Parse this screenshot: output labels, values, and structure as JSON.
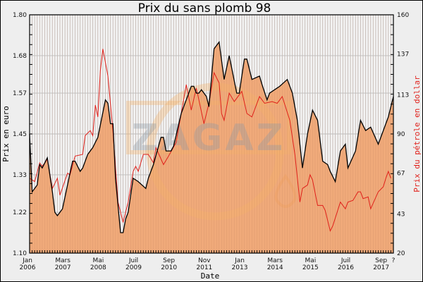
{
  "chart_data": {
    "type": "area",
    "title": "Prix du sans plomb 98",
    "xlabel": "Date",
    "ylabel": "Prix en euro",
    "y2label": "Prix du pétrole en dollar",
    "xlim": [
      "2006-01",
      "2018-01"
    ],
    "ylim": [
      1.1,
      1.8
    ],
    "y2lim": [
      20,
      160
    ],
    "yticks": [
      "1.10",
      "1.22",
      "1.33",
      "1.45",
      "1.57",
      "1.68",
      "1.80"
    ],
    "y2ticks": [
      "20",
      "43",
      "67",
      "90",
      "113",
      "137",
      "160"
    ],
    "xticks": [
      {
        "date": "2006-01",
        "month": "Jan",
        "year": "2006"
      },
      {
        "date": "2007-03",
        "month": "Mars",
        "year": "2007"
      },
      {
        "date": "2008-05",
        "month": "Mai",
        "year": "2008"
      },
      {
        "date": "2009-07",
        "month": "Juil",
        "year": "2009"
      },
      {
        "date": "2010-09",
        "month": "Sep",
        "year": "2010"
      },
      {
        "date": "2011-11",
        "month": "Nov",
        "year": "2011"
      },
      {
        "date": "2013-01",
        "month": "Jan",
        "year": "2013"
      },
      {
        "date": "2014-03",
        "month": "Mars",
        "year": "2014"
      },
      {
        "date": "2015-05",
        "month": "Mai",
        "year": "2015"
      },
      {
        "date": "2016-07",
        "month": "Juil",
        "year": "2016"
      },
      {
        "date": "2017-09",
        "month": "Sep",
        "year": "2017"
      }
    ],
    "xtick_end_label": "?",
    "grid": true,
    "watermark": "ZAGAZ",
    "colors": {
      "fill": "#f0aa7a",
      "euro_line": "#000000",
      "oil_line": "#e0201a",
      "plot_bg": "#f4f4f4",
      "grid": "#cccccc"
    },
    "series": [
      {
        "axis": "left",
        "kind": "area",
        "points": [
          [
            "2006-01",
            1.45
          ],
          [
            "2006-02",
            1.28
          ],
          [
            "2006-04",
            1.3
          ],
          [
            "2006-05",
            1.36
          ],
          [
            "2006-06",
            1.35
          ],
          [
            "2006-08",
            1.38
          ],
          [
            "2006-10",
            1.28
          ],
          [
            "2006-11",
            1.22
          ],
          [
            "2006-12",
            1.21
          ],
          [
            "2007-01",
            1.22
          ],
          [
            "2007-02",
            1.23
          ],
          [
            "2007-06",
            1.37
          ],
          [
            "2007-07",
            1.37
          ],
          [
            "2007-09",
            1.34
          ],
          [
            "2007-10",
            1.35
          ],
          [
            "2007-12",
            1.39
          ],
          [
            "2008-02",
            1.41
          ],
          [
            "2008-04",
            1.44
          ],
          [
            "2008-07",
            1.55
          ],
          [
            "2008-08",
            1.54
          ],
          [
            "2008-09",
            1.48
          ],
          [
            "2008-10",
            1.48
          ],
          [
            "2008-11",
            1.32
          ],
          [
            "2009-01",
            1.16
          ],
          [
            "2009-02",
            1.16
          ],
          [
            "2009-03",
            1.2
          ],
          [
            "2009-04",
            1.22
          ],
          [
            "2009-06",
            1.32
          ],
          [
            "2009-08",
            1.31
          ],
          [
            "2009-11",
            1.29
          ],
          [
            "2009-12",
            1.32
          ],
          [
            "2010-02",
            1.36
          ],
          [
            "2010-05",
            1.44
          ],
          [
            "2010-06",
            1.44
          ],
          [
            "2010-07",
            1.4
          ],
          [
            "2010-09",
            1.4
          ],
          [
            "2010-10",
            1.415
          ],
          [
            "2011-01",
            1.51
          ],
          [
            "2011-05",
            1.59
          ],
          [
            "2011-06",
            1.59
          ],
          [
            "2011-07",
            1.57
          ],
          [
            "2011-08",
            1.57
          ],
          [
            "2011-09",
            1.58
          ],
          [
            "2011-11",
            1.56
          ],
          [
            "2011-12",
            1.53
          ],
          [
            "2012-02",
            1.7
          ],
          [
            "2012-04",
            1.72
          ],
          [
            "2012-06",
            1.61
          ],
          [
            "2012-08",
            1.68
          ],
          [
            "2012-11",
            1.57
          ],
          [
            "2012-12",
            1.57
          ],
          [
            "2013-02",
            1.67
          ],
          [
            "2013-03",
            1.67
          ],
          [
            "2013-05",
            1.61
          ],
          [
            "2013-08",
            1.62
          ],
          [
            "2013-09",
            1.595
          ],
          [
            "2013-11",
            1.55
          ],
          [
            "2013-12",
            1.57
          ],
          [
            "2014-02",
            1.58
          ],
          [
            "2014-04",
            1.59
          ],
          [
            "2014-07",
            1.61
          ],
          [
            "2014-09",
            1.57
          ],
          [
            "2014-11",
            1.49
          ],
          [
            "2015-01",
            1.35
          ],
          [
            "2015-03",
            1.45
          ],
          [
            "2015-05",
            1.52
          ],
          [
            "2015-07",
            1.49
          ],
          [
            "2015-09",
            1.37
          ],
          [
            "2015-11",
            1.36
          ],
          [
            "2015-12",
            1.34
          ],
          [
            "2016-02",
            1.31
          ],
          [
            "2016-04",
            1.4
          ],
          [
            "2016-06",
            1.42
          ],
          [
            "2016-07",
            1.35
          ],
          [
            "2016-10",
            1.4
          ],
          [
            "2016-12",
            1.49
          ],
          [
            "2017-02",
            1.46
          ],
          [
            "2017-04",
            1.47
          ],
          [
            "2017-07",
            1.42
          ],
          [
            "2017-09",
            1.46
          ],
          [
            "2017-11",
            1.5
          ],
          [
            "2018-01",
            1.56
          ]
        ]
      },
      {
        "axis": "right",
        "kind": "line",
        "points": [
          [
            "2006-01",
            64
          ],
          [
            "2006-03",
            62
          ],
          [
            "2006-05",
            73
          ],
          [
            "2006-06",
            71
          ],
          [
            "2006-08",
            75
          ],
          [
            "2006-10",
            58
          ],
          [
            "2006-12",
            64
          ],
          [
            "2007-01",
            54
          ],
          [
            "2007-04",
            67
          ],
          [
            "2007-05",
            66
          ],
          [
            "2007-07",
            77
          ],
          [
            "2007-10",
            78
          ],
          [
            "2007-11",
            89
          ],
          [
            "2008-01",
            92
          ],
          [
            "2008-02",
            89
          ],
          [
            "2008-03",
            107
          ],
          [
            "2008-04",
            100
          ],
          [
            "2008-05",
            127
          ],
          [
            "2008-06",
            140
          ],
          [
            "2008-08",
            124
          ],
          [
            "2008-10",
            91
          ],
          [
            "2008-12",
            50
          ],
          [
            "2009-02",
            38
          ],
          [
            "2009-04",
            50
          ],
          [
            "2009-06",
            68
          ],
          [
            "2009-07",
            71
          ],
          [
            "2009-08",
            68
          ],
          [
            "2009-10",
            78
          ],
          [
            "2009-12",
            78
          ],
          [
            "2010-02",
            73
          ],
          [
            "2010-03",
            82
          ],
          [
            "2010-06",
            72
          ],
          [
            "2010-08",
            77
          ],
          [
            "2010-11",
            85
          ],
          [
            "2011-01",
            102
          ],
          [
            "2011-03",
            119
          ],
          [
            "2011-05",
            104
          ],
          [
            "2011-07",
            117
          ],
          [
            "2011-10",
            96
          ],
          [
            "2011-12",
            108
          ],
          [
            "2012-02",
            126
          ],
          [
            "2012-04",
            120
          ],
          [
            "2012-05",
            102
          ],
          [
            "2012-06",
            98
          ],
          [
            "2012-08",
            114
          ],
          [
            "2012-10",
            109
          ],
          [
            "2013-01",
            115
          ],
          [
            "2013-03",
            102
          ],
          [
            "2013-05",
            100
          ],
          [
            "2013-08",
            112
          ],
          [
            "2013-10",
            108
          ],
          [
            "2014-01",
            109
          ],
          [
            "2014-03",
            108
          ],
          [
            "2014-05",
            112
          ],
          [
            "2014-08",
            98
          ],
          [
            "2014-10",
            78
          ],
          [
            "2014-12",
            50
          ],
          [
            "2015-01",
            58
          ],
          [
            "2015-03",
            60
          ],
          [
            "2015-04",
            66
          ],
          [
            "2015-05",
            63
          ],
          [
            "2015-07",
            48
          ],
          [
            "2015-09",
            48
          ],
          [
            "2015-10",
            45
          ],
          [
            "2015-12",
            33
          ],
          [
            "2016-01",
            36
          ],
          [
            "2016-04",
            50
          ],
          [
            "2016-06",
            46
          ],
          [
            "2016-07",
            50
          ],
          [
            "2016-09",
            51
          ],
          [
            "2016-11",
            56
          ],
          [
            "2016-12",
            56
          ],
          [
            "2017-01",
            52
          ],
          [
            "2017-03",
            53
          ],
          [
            "2017-04",
            46
          ],
          [
            "2017-07",
            56
          ],
          [
            "2017-09",
            59
          ],
          [
            "2017-10",
            64
          ],
          [
            "2017-11",
            68
          ],
          [
            "2017-12",
            64
          ]
        ]
      }
    ]
  }
}
